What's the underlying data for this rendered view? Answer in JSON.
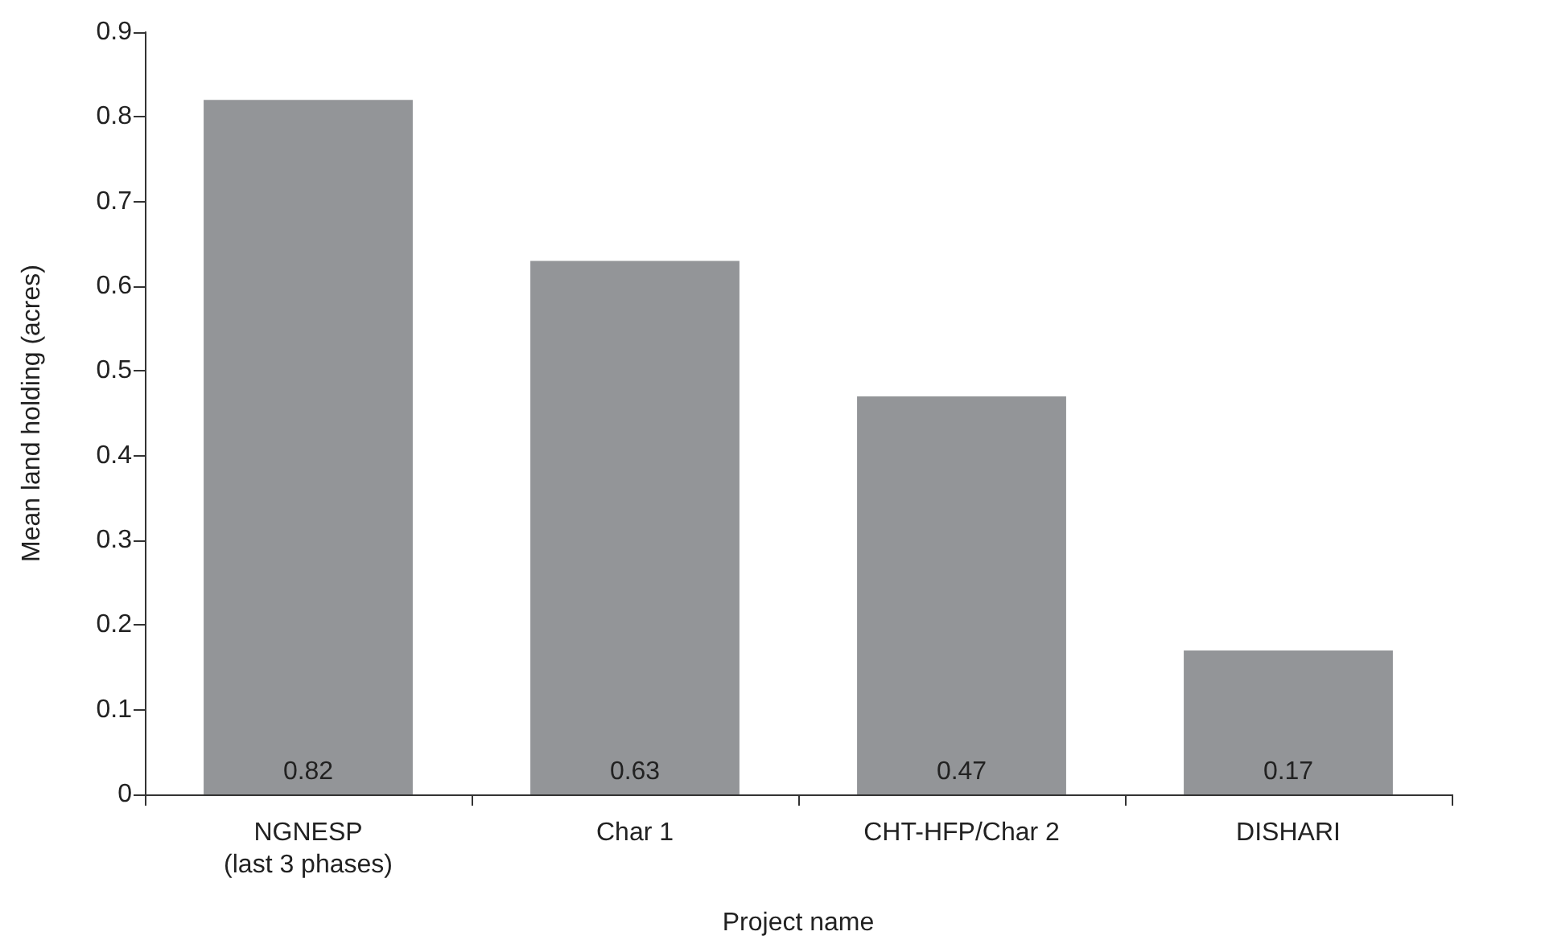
{
  "chart_data": {
    "type": "bar",
    "xlabel": "Project name",
    "ylabel": "Mean land holding (acres)",
    "categories": [
      "NGNESP\n(last 3 phases)",
      "Char 1",
      "CHT-HFP/Char 2",
      "DISHARI"
    ],
    "values": [
      0.82,
      0.63,
      0.47,
      0.17
    ],
    "color": "#939598",
    "ylim": [
      0,
      0.9
    ],
    "yticks": [
      0,
      0.1,
      0.2,
      0.3,
      0.4,
      0.5,
      0.6,
      0.7,
      0.8,
      0.9
    ],
    "data_labels": true,
    "grid": false
  }
}
